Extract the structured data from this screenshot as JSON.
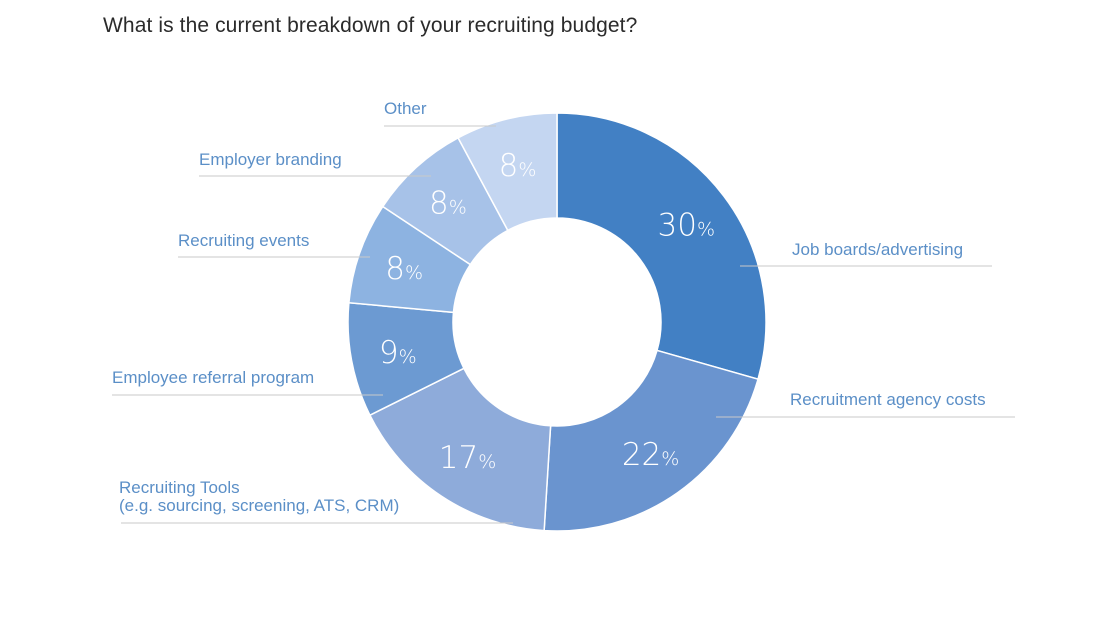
{
  "chart_data": {
    "type": "pie",
    "title": "What is the current breakdown of your recruiting budget?",
    "unit": "%",
    "legend": "callouts",
    "slices": [
      {
        "label": "Job boards/advertising",
        "value": 30,
        "color": "#4280c4"
      },
      {
        "label": "Recruitment agency costs",
        "value": 22,
        "color": "#6a94cf"
      },
      {
        "label": [
          "Recruiting Tools",
          "(e.g. sourcing, screening, ATS, CRM)"
        ],
        "value": 17,
        "color": "#8eabda"
      },
      {
        "label": "Employee referral program",
        "value": 9,
        "color": "#6c9ad2"
      },
      {
        "label": "Recruiting events",
        "value": 8,
        "color": "#8db3e1"
      },
      {
        "label": "Employer branding",
        "value": 8,
        "color": "#a7c2e8"
      },
      {
        "label": "Other",
        "value": 8,
        "color": "#c4d6f1"
      }
    ]
  }
}
